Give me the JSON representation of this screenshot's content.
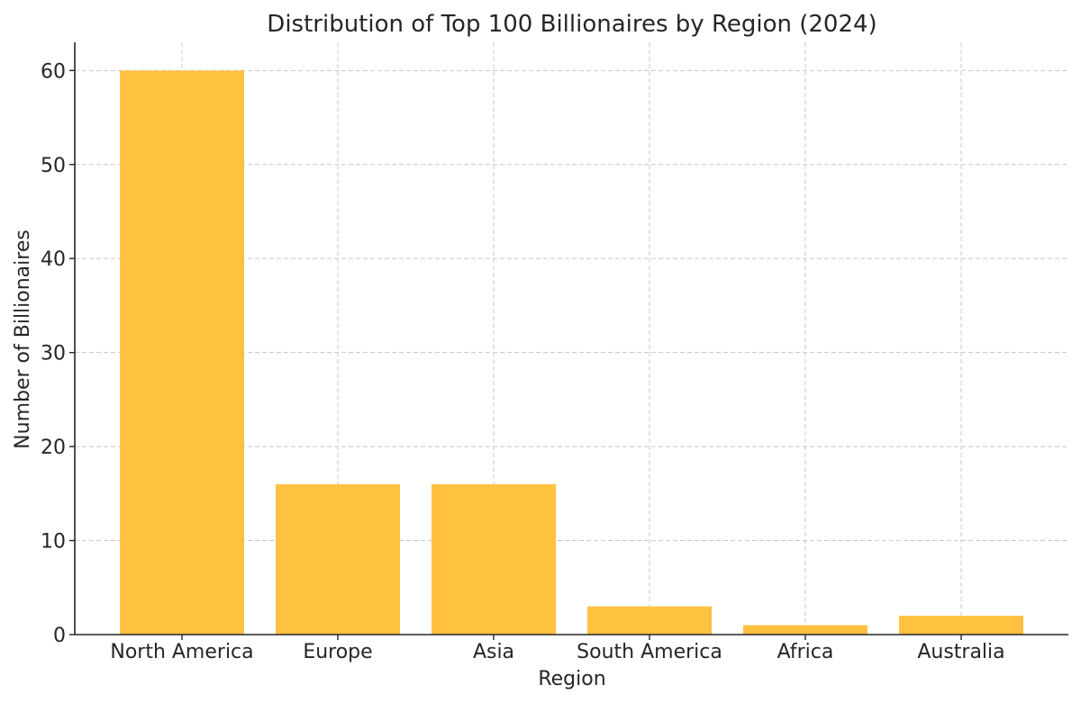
{
  "chart_data": {
    "type": "bar",
    "title": "Distribution of Top 100 Billionaires by Region (2024)",
    "xlabel": "Region",
    "ylabel": "Number of Billionaires",
    "categories": [
      "North America",
      "Europe",
      "Asia",
      "South America",
      "Africa",
      "Australia"
    ],
    "values": [
      60,
      16,
      16,
      3,
      1,
      2
    ],
    "ylim": [
      0,
      63
    ],
    "yticks": [
      0,
      10,
      20,
      30,
      40,
      50,
      60
    ],
    "grid": true,
    "bar_color": "#ffc13f"
  }
}
